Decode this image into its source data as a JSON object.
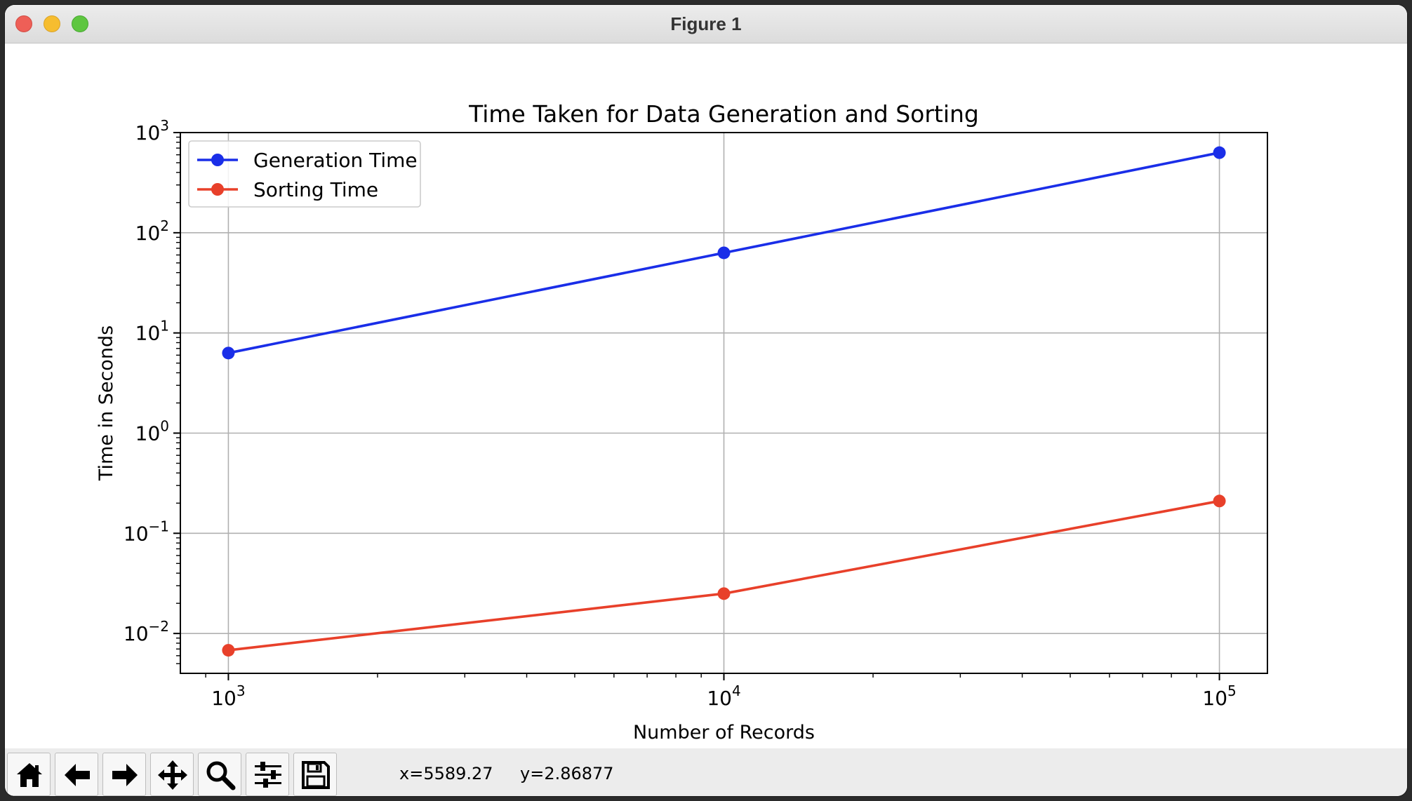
{
  "window": {
    "title": "Figure 1"
  },
  "toolbar": {
    "buttons": [
      {
        "name": "home-button",
        "icon": "home-icon"
      },
      {
        "name": "back-button",
        "icon": "arrow-left-icon"
      },
      {
        "name": "forward-button",
        "icon": "arrow-right-icon"
      },
      {
        "name": "pan-button",
        "icon": "move-icon"
      },
      {
        "name": "zoom-button",
        "icon": "magnifier-icon"
      },
      {
        "name": "configure-subplots-button",
        "icon": "sliders-icon"
      },
      {
        "name": "save-button",
        "icon": "floppy-disk-icon"
      }
    ],
    "x_readout": "x=5589.27",
    "y_readout": "y=2.86877"
  },
  "chart_data": {
    "type": "line",
    "title": "Time Taken for Data Generation and Sorting",
    "xlabel": "Number of Records",
    "ylabel": "Time in Seconds",
    "xscale": "log",
    "yscale": "log",
    "x": [
      1000,
      10000,
      100000
    ],
    "xlim": [
      800,
      125000
    ],
    "ylim": [
      0.004,
      1000
    ],
    "xticks": [
      {
        "base": "10",
        "exp": "3",
        "value": 1000
      },
      {
        "base": "10",
        "exp": "4",
        "value": 10000
      },
      {
        "base": "10",
        "exp": "5",
        "value": 100000
      }
    ],
    "yticks": [
      {
        "base": "10",
        "exp": "−2",
        "value": 0.01
      },
      {
        "base": "10",
        "exp": "−1",
        "value": 0.1
      },
      {
        "base": "10",
        "exp": "0",
        "value": 1
      },
      {
        "base": "10",
        "exp": "1",
        "value": 10
      },
      {
        "base": "10",
        "exp": "2",
        "value": 100
      },
      {
        "base": "10",
        "exp": "3",
        "value": 1000
      }
    ],
    "grid": true,
    "legend_position": "top-left",
    "series": [
      {
        "name": "Generation Time",
        "color": "#1a2ee8",
        "values": [
          6.3,
          63,
          630
        ]
      },
      {
        "name": "Sorting Time",
        "color": "#e8402a",
        "values": [
          0.0068,
          0.025,
          0.21
        ]
      }
    ]
  }
}
